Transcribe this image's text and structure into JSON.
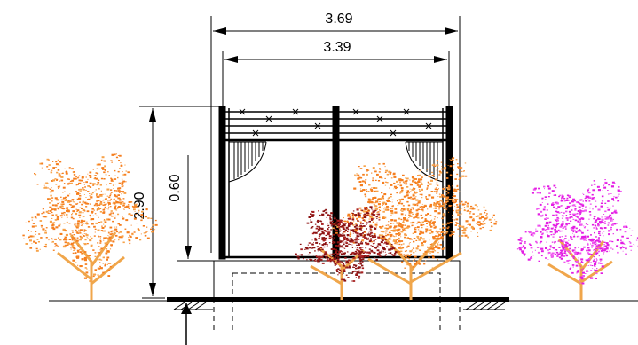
{
  "dimensions": {
    "overall_width": "3.69",
    "inner_width": "3.39",
    "total_height": "2.90",
    "base_height": "0.60"
  },
  "colors": {
    "tree_orange": "#f57e1e",
    "tree_light_orange": "#f7a34a",
    "tree_dark_red": "#8b1212",
    "tree_magenta": "#e31ce3",
    "trunk": "#f0a64b",
    "line": "#000000"
  }
}
